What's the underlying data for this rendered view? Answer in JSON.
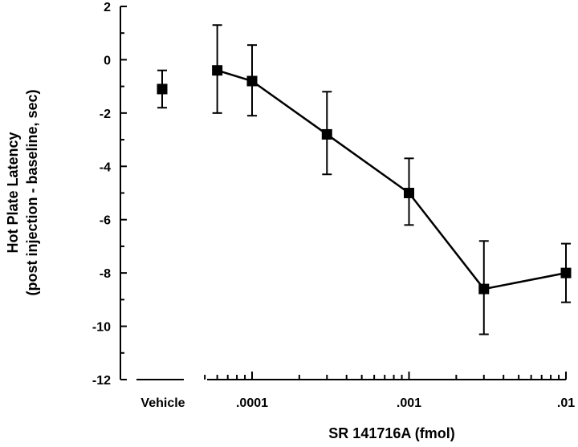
{
  "chart_data": {
    "type": "scatter",
    "title": "",
    "ylabel_line1": "Hot Plate Latency",
    "ylabel_line2": "(post injection - baseline, sec)",
    "xlabel": "SR 141716A (fmol)",
    "y_ticks": [
      "2",
      "0",
      "-2",
      "-4",
      "-6",
      "-8",
      "-10",
      "-12"
    ],
    "ylim": [
      -12,
      2
    ],
    "x_scale": "log",
    "xlim": [
      5e-05,
      0.01
    ],
    "x_ticks": [
      {
        "value": 0.0001,
        "label": ".0001"
      },
      {
        "value": 0.001,
        "label": ".001"
      },
      {
        "value": 0.01,
        "label": ".01"
      }
    ],
    "vehicle": {
      "label": "Vehicle",
      "y": -1.1,
      "err_low": -1.8,
      "err_high": -0.4
    },
    "series": [
      {
        "points": [
          {
            "x": 6e-05,
            "y": -0.4,
            "err_low": -2.0,
            "err_high": 1.3
          },
          {
            "x": 0.0001,
            "y": -0.8,
            "err_low": -2.1,
            "err_high": 0.55
          },
          {
            "x": 0.0003,
            "y": -2.8,
            "err_low": -4.3,
            "err_high": -1.2
          },
          {
            "x": 0.001,
            "y": -5.0,
            "err_low": -6.2,
            "err_high": -3.7
          },
          {
            "x": 0.003,
            "y": -8.6,
            "err_low": -10.3,
            "err_high": -6.8
          },
          {
            "x": 0.01,
            "y": -8.0,
            "err_low": -9.1,
            "err_high": -6.9
          }
        ]
      }
    ]
  }
}
